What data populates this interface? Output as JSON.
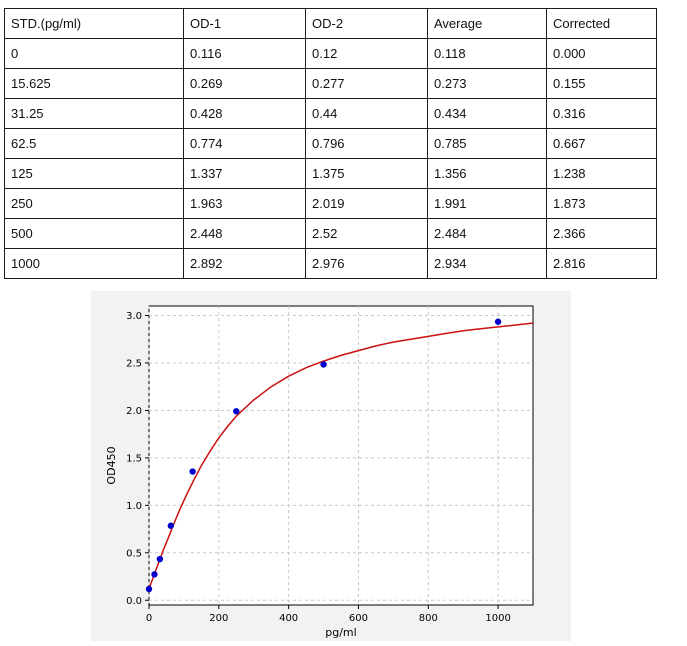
{
  "table": {
    "headers": [
      "STD.(pg/ml)",
      "OD-1",
      "OD-2",
      "Average",
      "Corrected"
    ],
    "rows": [
      [
        "0",
        "0.116",
        "0.12",
        "0.118",
        "0.000"
      ],
      [
        "15.625",
        "0.269",
        "0.277",
        "0.273",
        "0.155"
      ],
      [
        "31.25",
        "0.428",
        "0.44",
        "0.434",
        "0.316"
      ],
      [
        "62.5",
        "0.774",
        "0.796",
        "0.785",
        "0.667"
      ],
      [
        "125",
        "1.337",
        "1.375",
        "1.356",
        "1.238"
      ],
      [
        "250",
        "1.963",
        "2.019",
        "1.991",
        "1.873"
      ],
      [
        "500",
        "2.448",
        "2.52",
        "2.484",
        "2.366"
      ],
      [
        "1000",
        "2.892",
        "2.976",
        "2.934",
        "2.816"
      ]
    ]
  },
  "chart_data": {
    "type": "scatter",
    "xlabel": "pg/ml",
    "ylabel": "OD450",
    "xlim": [
      0,
      1100
    ],
    "ylim": [
      -0.05,
      3.1
    ],
    "xticks": [
      0,
      200,
      400,
      600,
      800,
      1000
    ],
    "yticks": [
      0.0,
      0.5,
      1.0,
      1.5,
      2.0,
      2.5,
      3.0
    ],
    "grid": true,
    "points": {
      "x": [
        0,
        15.625,
        31.25,
        62.5,
        125,
        250,
        500,
        1000
      ],
      "y": [
        0.118,
        0.273,
        0.434,
        0.785,
        1.356,
        1.991,
        2.484,
        2.934
      ],
      "color": "#0000cc"
    },
    "fit_curve": {
      "x": [
        0,
        5,
        10,
        20,
        30,
        40,
        50,
        60,
        75,
        90,
        110,
        130,
        150,
        175,
        200,
        225,
        250,
        300,
        350,
        400,
        450,
        500,
        550,
        600,
        650,
        700,
        750,
        800,
        850,
        900,
        950,
        1000,
        1050,
        1100
      ],
      "y": [
        0.12,
        0.17,
        0.22,
        0.32,
        0.42,
        0.52,
        0.61,
        0.7,
        0.84,
        0.97,
        1.13,
        1.28,
        1.42,
        1.57,
        1.71,
        1.83,
        1.94,
        2.11,
        2.25,
        2.36,
        2.45,
        2.52,
        2.58,
        2.63,
        2.68,
        2.72,
        2.75,
        2.78,
        2.81,
        2.84,
        2.86,
        2.88,
        2.9,
        2.92
      ],
      "color": "#cc1111"
    }
  }
}
